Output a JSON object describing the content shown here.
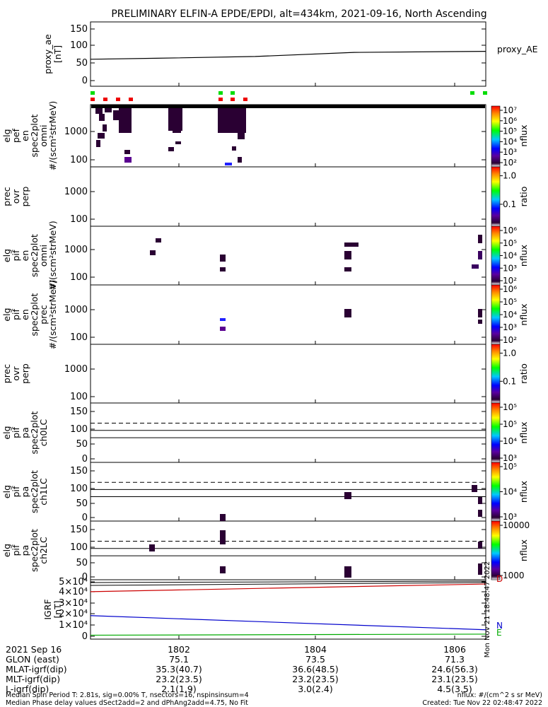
{
  "title": "PRELIMINARY ELFIN-A EPDE/EPDI, alt=434km, 2021-09-16, North Ascending",
  "panels": [
    {
      "id": "ae",
      "ylabel": [
        "proxy_ae",
        "[nT]"
      ],
      "yticks": [
        "150",
        "100",
        "50",
        "0"
      ],
      "right_label": "proxy_AE"
    },
    {
      "id": "pef",
      "ylabel": [
        "elg",
        "pef",
        "en",
        "spec2plot",
        "omni",
        "#/(scm²strMeV)"
      ],
      "yticks": [
        "1000",
        "100"
      ],
      "cbar_ticks": [
        "10⁷",
        "10⁶",
        "10⁵",
        "10⁴",
        "10³",
        "10²"
      ],
      "cbar_unit": "nflux"
    },
    {
      "id": "prec1",
      "ylabel": [
        "prec",
        "ovr",
        "perp"
      ],
      "yticks": [
        "1000",
        "100"
      ],
      "cbar_ticks": [
        "1.0",
        "0.1"
      ],
      "cbar_unit": "ratio"
    },
    {
      "id": "pif_omni",
      "ylabel": [
        "elg",
        "pif",
        "en",
        "spec2plot",
        "omni",
        "#/(scm²strMeV)"
      ],
      "yticks": [
        "1000",
        "100"
      ],
      "cbar_ticks": [
        "10⁶",
        "10⁵",
        "10⁴",
        "10³",
        "10²"
      ],
      "cbar_unit": "nflux"
    },
    {
      "id": "pif_prec",
      "ylabel": [
        "elg",
        "pif",
        "en",
        "spec2plot",
        "prec",
        "#/(scm²strMeV)"
      ],
      "yticks": [
        "1000",
        "100"
      ],
      "cbar_ticks": [
        "10⁶",
        "10⁵",
        "10⁴",
        "10³",
        "10²"
      ],
      "cbar_unit": "nflux"
    },
    {
      "id": "prec2",
      "ylabel": [
        "prec",
        "ovr",
        "perp"
      ],
      "yticks": [
        "1000",
        "100"
      ],
      "cbar_ticks": [
        "1.0",
        "0.1"
      ],
      "cbar_unit": "ratio"
    },
    {
      "id": "ch0",
      "ylabel": [
        "elg",
        "pif",
        "pa",
        "spec2plot",
        "ch0LC"
      ],
      "yticks": [
        "150",
        "100",
        "50",
        "0"
      ],
      "cbar_ticks": [
        "10⁵",
        "10⁵",
        "10⁴",
        "10³"
      ],
      "cbar_unit": "nflux"
    },
    {
      "id": "ch1",
      "ylabel": [
        "elg",
        "pif",
        "pa",
        "spec2plot",
        "ch1LC"
      ],
      "yticks": [
        "150",
        "100",
        "50",
        "0"
      ],
      "cbar_ticks": [
        "10⁵",
        "10⁴",
        "10³"
      ],
      "cbar_unit": "nflux"
    },
    {
      "id": "ch2",
      "ylabel": [
        "elg",
        "pif",
        "pa",
        "spec2plot",
        "ch2LC"
      ],
      "yticks": [
        "150",
        "100",
        "50",
        "0"
      ],
      "cbar_ticks": [
        "10000",
        "1000"
      ],
      "cbar_unit": "nflux"
    },
    {
      "id": "igrf",
      "ylabel": [
        "IGRF",
        "[nT]"
      ],
      "yticks": [
        "5×10⁴",
        "4×10⁴",
        "3×10⁴",
        "2×10⁴",
        "1×10⁴",
        "0"
      ],
      "legend": [
        "D",
        "N",
        "E"
      ]
    }
  ],
  "chart_data": {
    "type": "line",
    "x_ticks": [
      "1802",
      "1804",
      "1806"
    ],
    "proxy_ae": {
      "x": [
        1800.5,
        1801.5,
        1803,
        1804.5,
        1806.5
      ],
      "y": [
        62,
        65,
        70,
        82,
        85
      ],
      "ylim": [
        0,
        150
      ]
    },
    "pa_reference_lines": {
      "dashed": 113,
      "solid_upper": 90,
      "solid_lower": 67
    },
    "igrf": {
      "ylim": [
        0,
        50000
      ],
      "D": {
        "color": "#cc0000",
        "y_start": 41000,
        "y_end": 48000
      },
      "N": {
        "color": "#0000cc",
        "y_start": 19000,
        "y_end": 6000
      },
      "E": {
        "color": "#00aa00",
        "y_start": 1000,
        "y_end": 2000
      }
    }
  },
  "footer": {
    "date": "2021 Sep 16",
    "rows": [
      {
        "label": "GLON (east)",
        "values": [
          "75.1",
          "73.5",
          "71.3"
        ]
      },
      {
        "label": "MLAT-igrf(dip)",
        "values": [
          "35.3(40.7)",
          "36.6(48.5)",
          "24.6(56.3)"
        ]
      },
      {
        "label": "MLT-igrf(dip)",
        "values": [
          "23.2(23.5)",
          "23.2(23.5)",
          "23.1(23.5)"
        ]
      },
      {
        "label": "L-igrf(dip)",
        "values": [
          "2.1(1.9)",
          "3.0(2.4)",
          "4.5(3.5)"
        ]
      }
    ],
    "note1": "Median Spin Period T: 2.81s, sig=0.00% T, nsectors=16, nspinsinsum=4",
    "note2": "Median Phase delay values dSect2add=2 and dPhAng2add=4.75, No Fit",
    "units": "nflux: #/(cm^2 s sr MeV)",
    "created": "Created: Tue Nov 22 02:48:47 2022",
    "side_stamp": "Mon Nov 21 18:48:47 2022"
  }
}
